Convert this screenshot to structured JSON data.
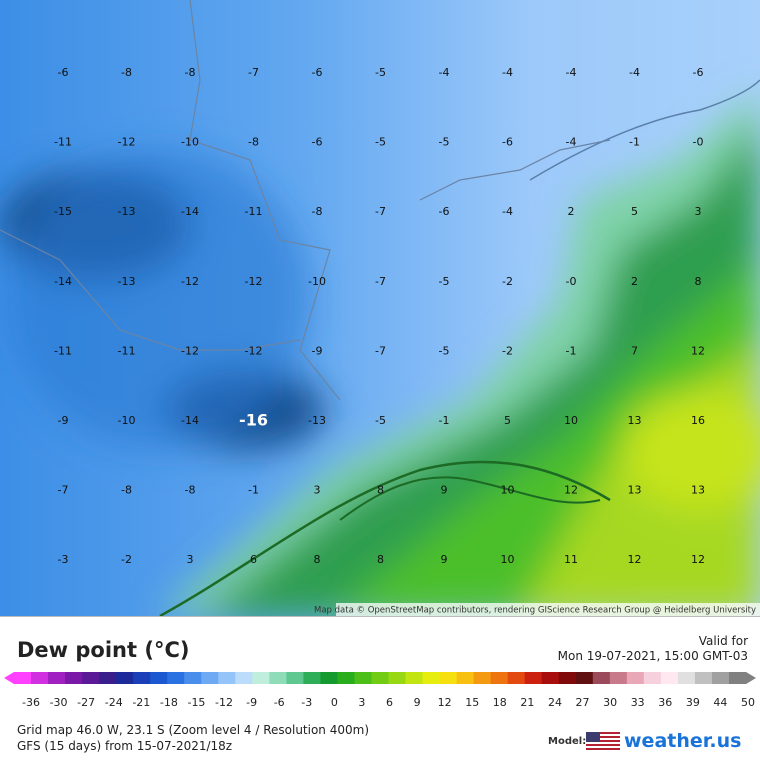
{
  "map": {
    "attribution": "Map data © OpenStreetMap contributors, rendering GIScience Research Group @ Heidelberg University",
    "grid": [
      [
        "-6",
        "-8",
        "-8",
        "-7",
        "-6",
        "-5",
        "-4",
        "-4",
        "-4",
        "-4",
        "-6"
      ],
      [
        "-11",
        "-12",
        "-10",
        "-8",
        "-6",
        "-5",
        "-5",
        "-6",
        "-4",
        "-1",
        "-0"
      ],
      [
        "-15",
        "-13",
        "-14",
        "-11",
        "-8",
        "-7",
        "-6",
        "-4",
        "2",
        "5",
        "3"
      ],
      [
        "-14",
        "-13",
        "-12",
        "-12",
        "-10",
        "-7",
        "-5",
        "-2",
        "-0",
        "2",
        "8"
      ],
      [
        "-11",
        "-11",
        "-12",
        "-12",
        "-9",
        "-7",
        "-5",
        "-2",
        "-1",
        "7",
        "12"
      ],
      [
        "-9",
        "-10",
        "-14",
        "-16",
        "-13",
        "-5",
        "-1",
        "5",
        "10",
        "13",
        "16"
      ],
      [
        "-7",
        "-8",
        "-8",
        "-1",
        "3",
        "8",
        "9",
        "10",
        "12",
        "13",
        "13"
      ],
      [
        "-3",
        "-2",
        "3",
        "6",
        "8",
        "8",
        "9",
        "10",
        "11",
        "12",
        "12"
      ]
    ]
  },
  "header": {
    "title": "Dew point (°C)",
    "valid_label": "Valid for",
    "valid_time": "Mon 19-07-2021, 15:00 GMT-03"
  },
  "legend": {
    "ticks": [
      "-36",
      "-30",
      "-27",
      "-24",
      "-21",
      "-18",
      "-15",
      "-12",
      "-9",
      "-6",
      "-3",
      "0",
      "3",
      "6",
      "9",
      "12",
      "15",
      "18",
      "21",
      "24",
      "27",
      "30",
      "33",
      "36",
      "39",
      "44",
      "50"
    ]
  },
  "footer": {
    "grid_info": "Grid map 46.0 W, 23.1 S (Zoom level 4 / Resolution 400m)",
    "run": "GFS (15 days) from 15-07-2021/18z",
    "model_label": "Model:",
    "brand": "weather.us"
  }
}
